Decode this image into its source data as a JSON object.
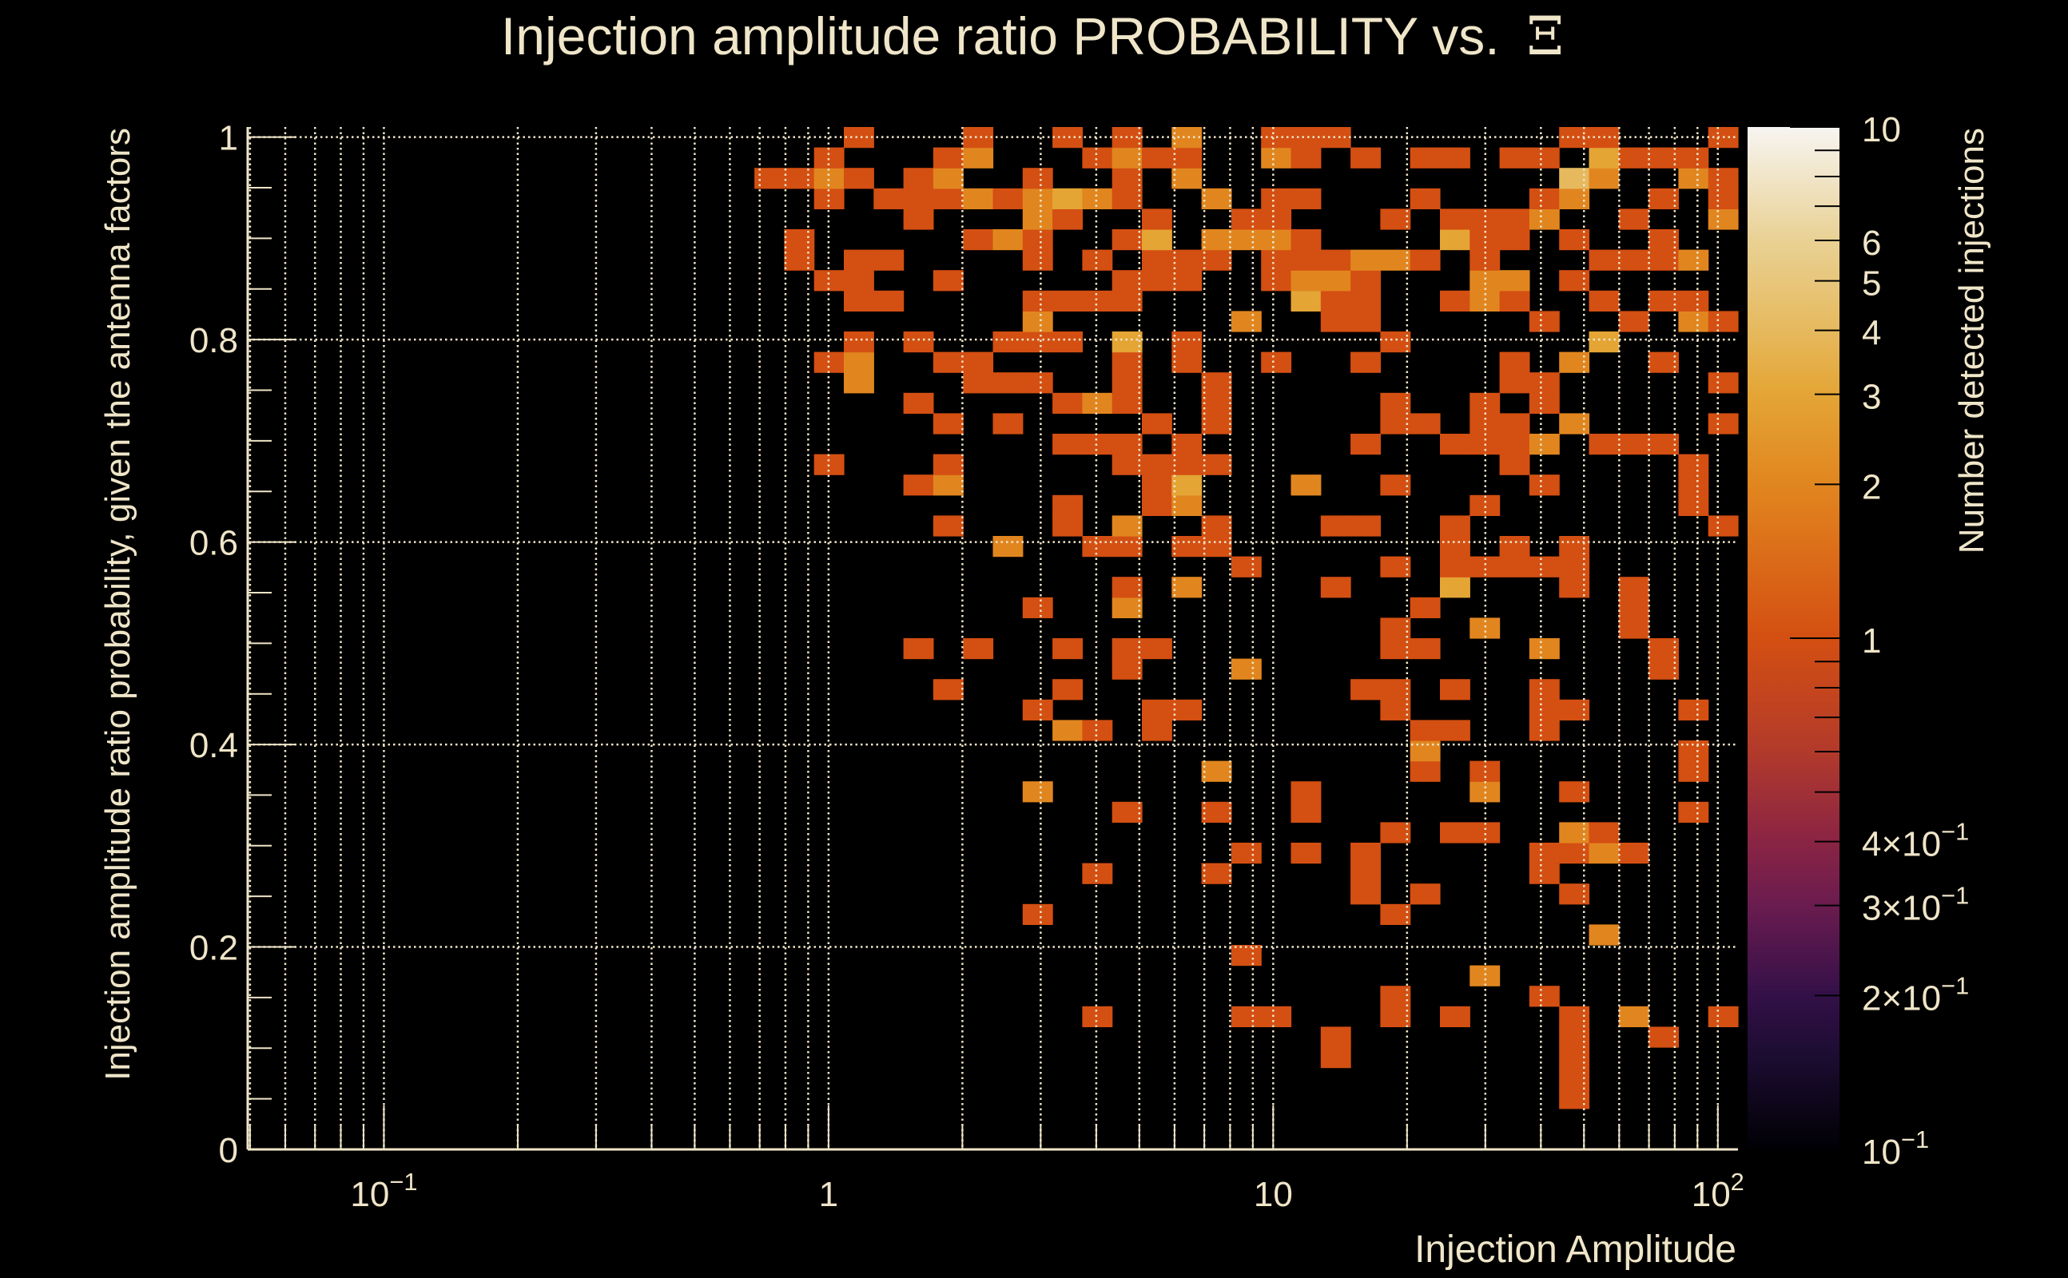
{
  "chart_data": {
    "type": "heatmap",
    "title": "Injection amplitude ratio PROBABILITY vs.",
    "title_symbol": "Ξ",
    "xlabel": "Injection Amplitude",
    "ylabel": "Injection amplitude ratio probability, given the antenna factors",
    "zlabel": "Number detected injections",
    "x_scale": "log",
    "x_range": [
      0.0494,
      111
    ],
    "x_bins": 50,
    "y_range": [
      0,
      1.01
    ],
    "y_bins": 50,
    "z_scale": "log",
    "z_range": [
      0.1,
      10
    ],
    "x_tick_labels": [
      {
        "value": 0.1,
        "base": "10",
        "exp": "−1"
      },
      {
        "value": 1,
        "base": "1",
        "exp": ""
      },
      {
        "value": 10,
        "base": "10",
        "exp": ""
      },
      {
        "value": 100,
        "base": "10",
        "exp": "2"
      }
    ],
    "y_tick_labels": [
      {
        "value": 0,
        "label": "0"
      },
      {
        "value": 0.2,
        "label": "0.2"
      },
      {
        "value": 0.4,
        "label": "0.4"
      },
      {
        "value": 0.6,
        "label": "0.6"
      },
      {
        "value": 0.8,
        "label": "0.8"
      },
      {
        "value": 1,
        "label": "1"
      }
    ],
    "z_tick_labels": [
      {
        "value": 10,
        "base": "10",
        "exp": ""
      },
      {
        "value": 6,
        "base": "6",
        "exp": ""
      },
      {
        "value": 5,
        "base": "5",
        "exp": ""
      },
      {
        "value": 4,
        "base": "4",
        "exp": ""
      },
      {
        "value": 3,
        "base": "3",
        "exp": ""
      },
      {
        "value": 2,
        "base": "2",
        "exp": ""
      },
      {
        "value": 1,
        "base": "1",
        "exp": ""
      },
      {
        "value": 0.4,
        "base": "4×10",
        "exp": "−1"
      },
      {
        "value": 0.3,
        "base": "3×10",
        "exp": "−1"
      },
      {
        "value": 0.2,
        "base": "2×10",
        "exp": "−1"
      },
      {
        "value": 0.1,
        "base": "10",
        "exp": "−1"
      }
    ],
    "grid": true,
    "colorbar": "right",
    "colors": {
      "text": "#efe5c8",
      "grid": "#efe5c8",
      "background": "#000000",
      "colormap": [
        [
          0.1,
          "#000004"
        ],
        [
          0.15,
          "#1b0c30"
        ],
        [
          0.2,
          "#331048"
        ],
        [
          0.3,
          "#6a1c4f"
        ],
        [
          0.4,
          "#8a2444"
        ],
        [
          0.6,
          "#b23a2b"
        ],
        [
          1,
          "#d44f12"
        ],
        [
          2,
          "#e1861f"
        ],
        [
          3,
          "#e4a535"
        ],
        [
          4,
          "#e6b95e"
        ],
        [
          6,
          "#e9d194"
        ],
        [
          10,
          "#f7f5f1"
        ]
      ]
    },
    "counts_by_ybin": {
      "49": {
        "20": 1,
        "24": 1,
        "27": 1,
        "29": 1,
        "31": 2,
        "34": 1,
        "35": 1,
        "36": 1,
        "44": 1,
        "45": 1,
        "49": 1
      },
      "48": {
        "19": 1,
        "23": 1,
        "24": 2,
        "28": 1,
        "29": 2,
        "30": 1,
        "31": 1,
        "34": 2,
        "35": 1,
        "37": 1,
        "39": 1,
        "40": 1,
        "42": 1,
        "43": 1,
        "45": 3,
        "46": 1,
        "47": 1,
        "48": 1
      },
      "47": {
        "17": 1,
        "18": 1,
        "19": 2,
        "20": 1,
        "22": 1,
        "23": 2,
        "26": 1,
        "29": 1,
        "31": 2,
        "44": 4,
        "45": 2,
        "48": 2,
        "49": 1
      },
      "46": {
        "19": 1,
        "21": 1,
        "22": 1,
        "23": 1,
        "24": 2,
        "25": 1,
        "26": 2,
        "27": 3,
        "28": 2,
        "29": 1,
        "32": 2,
        "34": 1,
        "35": 1,
        "39": 1,
        "43": 1,
        "44": 2,
        "47": 1,
        "49": 1
      },
      "45": {
        "22": 1,
        "26": 2,
        "27": 1,
        "30": 1,
        "33": 1,
        "34": 1,
        "38": 1,
        "40": 1,
        "41": 1,
        "42": 1,
        "43": 2,
        "46": 1,
        "49": 2
      },
      "44": {
        "18": 1,
        "24": 1,
        "25": 2,
        "26": 1,
        "29": 1,
        "30": 3,
        "32": 2,
        "33": 2,
        "34": 2,
        "35": 1,
        "40": 3,
        "41": 1,
        "42": 1,
        "44": 1,
        "47": 1
      },
      "43": {
        "18": 1,
        "20": 1,
        "21": 1,
        "26": 1,
        "28": 1,
        "30": 1,
        "31": 1,
        "32": 1,
        "34": 1,
        "35": 1,
        "36": 1,
        "37": 2,
        "38": 2,
        "39": 1,
        "41": 1,
        "45": 1,
        "46": 1,
        "47": 1,
        "48": 2
      },
      "42": {
        "19": 1,
        "20": 1,
        "23": 1,
        "29": 1,
        "30": 1,
        "31": 1,
        "34": 1,
        "35": 2,
        "36": 2,
        "37": 1,
        "41": 2,
        "42": 2,
        "44": 1
      },
      "41": {
        "20": 1,
        "21": 1,
        "26": 1,
        "27": 1,
        "28": 1,
        "29": 1,
        "35": 3,
        "36": 1,
        "37": 1,
        "40": 1,
        "41": 2,
        "42": 1,
        "45": 1,
        "47": 1,
        "48": 1
      },
      "40": {
        "26": 2,
        "33": 2,
        "36": 1,
        "37": 1,
        "43": 1,
        "46": 1,
        "48": 2,
        "49": 1
      },
      "39": {
        "20": 1,
        "22": 1,
        "25": 1,
        "26": 1,
        "27": 1,
        "29": 3,
        "31": 1,
        "38": 1,
        "45": 3
      },
      "38": {
        "19": 1,
        "20": 2,
        "23": 1,
        "24": 1,
        "29": 1,
        "31": 1,
        "34": 1,
        "37": 1,
        "42": 1,
        "44": 2,
        "47": 1
      },
      "37": {
        "20": 2,
        "24": 1,
        "25": 1,
        "26": 1,
        "29": 1,
        "32": 1,
        "42": 1,
        "43": 1,
        "49": 1
      },
      "36": {
        "22": 1,
        "27": 1,
        "28": 2,
        "29": 1,
        "32": 1,
        "38": 1,
        "41": 1,
        "43": 1
      },
      "35": {
        "23": 1,
        "25": 1,
        "30": 1,
        "32": 1,
        "38": 1,
        "39": 1,
        "41": 1,
        "42": 1,
        "44": 2,
        "49": 1
      },
      "34": {
        "27": 1,
        "28": 1,
        "29": 1,
        "31": 1,
        "37": 1,
        "40": 1,
        "41": 1,
        "42": 1,
        "43": 2,
        "45": 1,
        "46": 1,
        "47": 1
      },
      "33": {
        "19": 1,
        "23": 1,
        "29": 1,
        "30": 1,
        "31": 1,
        "32": 1,
        "42": 1,
        "48": 1
      },
      "32": {
        "22": 1,
        "23": 2,
        "30": 1,
        "31": 3,
        "35": 2,
        "38": 1,
        "43": 1,
        "48": 1
      },
      "31": {
        "27": 1,
        "30": 1,
        "31": 2,
        "41": 1,
        "48": 1
      },
      "30": {
        "23": 1,
        "27": 1,
        "29": 2,
        "32": 1,
        "36": 1,
        "37": 1,
        "40": 1,
        "49": 1
      },
      "29": {
        "25": 2,
        "28": 1,
        "29": 1,
        "31": 1,
        "32": 1,
        "40": 1,
        "42": 1,
        "44": 1
      },
      "28": {
        "33": 1,
        "38": 1,
        "40": 1,
        "41": 1,
        "42": 1,
        "43": 1,
        "44": 1
      },
      "27": {
        "29": 1,
        "31": 2,
        "36": 1,
        "40": 3,
        "44": 1,
        "46": 1
      },
      "26": {
        "26": 1,
        "29": 2,
        "39": 1,
        "46": 1
      },
      "25": {
        "38": 1,
        "41": 2,
        "46": 1
      },
      "24": {
        "22": 1,
        "24": 1,
        "27": 1,
        "29": 1,
        "30": 1,
        "38": 1,
        "39": 1,
        "43": 2,
        "47": 1
      },
      "23": {
        "29": 1,
        "33": 2,
        "47": 1
      },
      "22": {
        "23": 1,
        "27": 1,
        "37": 1,
        "38": 1,
        "40": 1,
        "43": 1
      },
      "21": {
        "26": 1,
        "30": 1,
        "31": 1,
        "38": 1,
        "43": 1,
        "44": 1,
        "48": 1
      },
      "20": {
        "27": 2,
        "28": 1,
        "30": 1,
        "39": 1,
        "40": 1,
        "43": 1
      },
      "19": {
        "39": 2,
        "48": 1
      },
      "18": {
        "32": 2,
        "39": 1,
        "41": 1,
        "48": 1
      },
      "17": {
        "26": 2,
        "35": 1,
        "41": 2,
        "44": 1
      },
      "16": {
        "29": 1,
        "32": 1,
        "35": 1,
        "48": 1
      },
      "15": {
        "38": 1,
        "40": 1,
        "41": 1,
        "44": 2,
        "45": 1
      },
      "14": {
        "33": 1,
        "35": 1,
        "37": 1,
        "43": 1,
        "44": 1,
        "45": 2,
        "46": 1
      },
      "13": {
        "28": 1,
        "32": 1,
        "37": 1,
        "43": 1
      },
      "12": {
        "37": 1,
        "39": 1,
        "44": 1
      },
      "11": {
        "26": 1,
        "38": 1
      },
      "10": {
        "45": 2
      },
      "9": {
        "33": 1
      },
      "8": {
        "41": 2
      },
      "7": {
        "38": 1,
        "43": 1
      },
      "6": {
        "28": 1,
        "33": 1,
        "34": 1,
        "38": 1,
        "40": 1,
        "44": 1,
        "46": 2,
        "49": 1
      },
      "5": {
        "36": 1,
        "44": 1,
        "47": 1
      },
      "4": {
        "36": 1,
        "44": 1
      },
      "3": {
        "44": 1
      },
      "2": {
        "44": 1
      }
    }
  }
}
